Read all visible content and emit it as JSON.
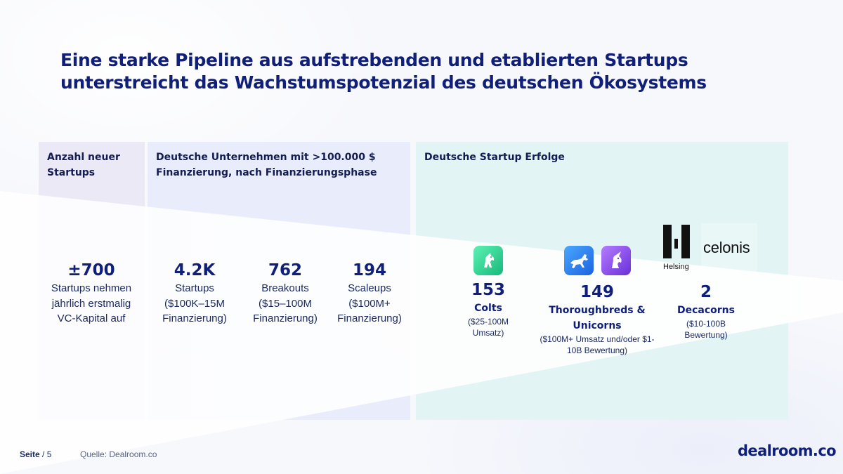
{
  "title": "Eine starke Pipeline aus aufstrebenden und etablierten Startups unterstreicht das Wachstumspotenzial des deutschen Ökosystems",
  "panels": {
    "new_startups": {
      "heading": "Anzahl neuer Startups"
    },
    "funded": {
      "heading": "Deutsche Unternehmen mit >100.000 $ Finanzierung, nach Finanzierungsphase"
    },
    "success": {
      "heading": "Deutsche Startup Erfolge"
    }
  },
  "stats": {
    "new": {
      "value": "±700",
      "label": "Startups nehmen jährlich erstmalig VC-Kapital auf"
    },
    "startups": {
      "value": "4.2K",
      "label": "Startups",
      "range": "($100K–15M Finanzierung)"
    },
    "breakouts": {
      "value": "762",
      "label": "Breakouts",
      "range": "($15–100M Finanzierung)"
    },
    "scaleups": {
      "value": "194",
      "label": "Scaleups",
      "range": "($100M+ Finanzierung)"
    },
    "colts": {
      "value": "153",
      "label": "Colts",
      "range": "($25-100M Umsatz)"
    },
    "thoroughbreds": {
      "value": "149",
      "label": "Thoroughbreds & Unicorns",
      "range": "($100M+ Umsatz und/oder $1-10B Bewertung)"
    },
    "decacorns": {
      "value": "2",
      "label": "Decacorns",
      "range": "($10-100B Bewertung)"
    }
  },
  "logos": {
    "helsing": "Helsing",
    "celonis": "celonis"
  },
  "icons": {
    "colt": "colt-icon",
    "horse": "horse-icon",
    "unicorn": "unicorn-icon"
  },
  "footer": {
    "page_label": "Seite",
    "page_number": "/ 5",
    "source": "Quelle: Dealroom.co",
    "brand": "dealroom.co"
  },
  "colors": {
    "navy": "#0f1f7a",
    "panel1": "#ece9f7",
    "panel2": "#e9edfb",
    "panel3": "#e2f4f3"
  }
}
